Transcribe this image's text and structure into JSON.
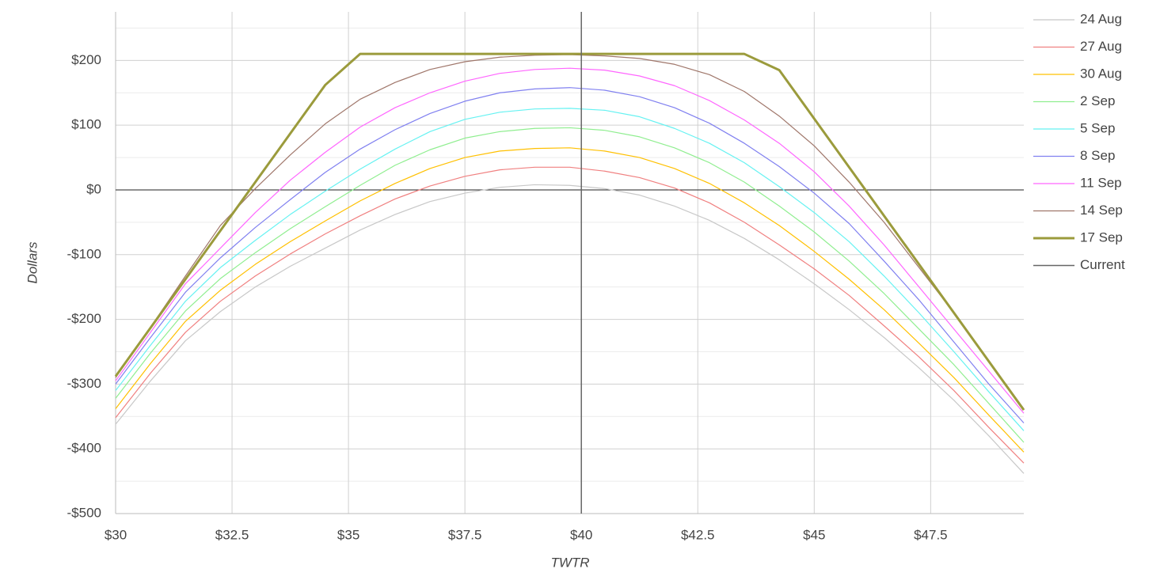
{
  "chart_data": {
    "type": "line",
    "x_label": "TWTR",
    "y_label": "Dollars",
    "x": [
      30,
      30.75,
      31.5,
      32.25,
      33,
      33.75,
      34.5,
      35.25,
      36,
      36.75,
      37.5,
      38.25,
      39,
      39.75,
      40.5,
      41.25,
      42,
      42.75,
      43.5,
      44.25,
      45,
      45.75,
      46.5,
      47.25,
      48,
      48.75,
      49.5
    ],
    "series": [
      {
        "name": "24 Aug",
        "color": "#c8c8c8",
        "width": 1.2,
        "values": [
          -362,
          -295,
          -233,
          -188,
          -150,
          -118,
          -90,
          -62,
          -38,
          -18,
          -5,
          4,
          8,
          7,
          2,
          -8,
          -25,
          -47,
          -75,
          -108,
          -145,
          -185,
          -228,
          -275,
          -325,
          -380,
          -438
        ]
      },
      {
        "name": "27 Aug",
        "color": "#f08080",
        "width": 1.2,
        "values": [
          -352,
          -283,
          -220,
          -172,
          -133,
          -99,
          -68,
          -40,
          -14,
          6,
          21,
          31,
          35,
          35,
          29,
          19,
          3,
          -20,
          -50,
          -85,
          -122,
          -163,
          -210,
          -258,
          -310,
          -367,
          -422
        ]
      },
      {
        "name": "30 Aug",
        "color": "#ffc000",
        "width": 1.2,
        "values": [
          -338,
          -268,
          -203,
          -155,
          -115,
          -80,
          -48,
          -17,
          10,
          33,
          50,
          60,
          64,
          65,
          60,
          50,
          33,
          10,
          -20,
          -55,
          -95,
          -138,
          -185,
          -237,
          -290,
          -348,
          -405
        ]
      },
      {
        "name": "2 Sep",
        "color": "#90ee90",
        "width": 1.2,
        "values": [
          -322,
          -252,
          -187,
          -137,
          -97,
          -60,
          -26,
          7,
          38,
          62,
          80,
          90,
          95,
          96,
          92,
          82,
          65,
          42,
          12,
          -25,
          -65,
          -110,
          -160,
          -215,
          -270,
          -330,
          -390
        ]
      },
      {
        "name": "5 Sep",
        "color": "#66f2f2",
        "width": 1.2,
        "values": [
          -310,
          -240,
          -172,
          -120,
          -78,
          -38,
          -2,
          32,
          63,
          90,
          109,
          120,
          125,
          126,
          123,
          113,
          95,
          72,
          42,
          5,
          -35,
          -80,
          -133,
          -190,
          -250,
          -312,
          -372
        ]
      },
      {
        "name": "8 Sep",
        "color": "#8080f0",
        "width": 1.2,
        "values": [
          -300,
          -228,
          -158,
          -105,
          -58,
          -15,
          27,
          63,
          93,
          118,
          137,
          150,
          156,
          158,
          154,
          144,
          127,
          103,
          72,
          36,
          -5,
          -52,
          -110,
          -170,
          -235,
          -300,
          -360
        ]
      },
      {
        "name": "11 Sep",
        "color": "#ff66ff",
        "width": 1.2,
        "values": [
          -295,
          -220,
          -145,
          -90,
          -35,
          15,
          58,
          97,
          127,
          150,
          168,
          180,
          186,
          188,
          185,
          176,
          161,
          138,
          108,
          72,
          28,
          -25,
          -85,
          -150,
          -215,
          -280,
          -345
        ]
      },
      {
        "name": "14 Sep",
        "color": "#a0776b",
        "width": 1.2,
        "values": [
          -290,
          -212,
          -133,
          -55,
          2,
          54,
          102,
          140,
          166,
          186,
          198,
          205,
          208,
          209,
          207,
          203,
          194,
          178,
          152,
          114,
          68,
          12,
          -50,
          -120,
          -190,
          -265,
          -338
        ]
      },
      {
        "name": "17 Sep",
        "color": "#9b9b3c",
        "width": 3,
        "values": [
          -288,
          -213,
          -138,
          -63,
          12,
          87,
          162,
          210,
          210,
          210,
          210,
          210,
          210,
          210,
          210,
          210,
          210,
          210,
          210,
          185,
          110,
          35,
          -40,
          -115,
          -190,
          -265,
          -340
        ]
      }
    ],
    "current": {
      "name": "Current",
      "color": "#666666",
      "x": 40
    },
    "xlim": [
      30,
      49.5
    ],
    "ylim": [
      -500,
      275
    ],
    "xticks": [
      {
        "value": 30,
        "label": "$30"
      },
      {
        "value": 32.5,
        "label": "$32.5"
      },
      {
        "value": 35,
        "label": "$35"
      },
      {
        "value": 37.5,
        "label": "$37.5"
      },
      {
        "value": 40,
        "label": "$40"
      },
      {
        "value": 42.5,
        "label": "$42.5"
      },
      {
        "value": 45,
        "label": "$45"
      },
      {
        "value": 47.5,
        "label": "$47.5"
      }
    ],
    "yticks": [
      {
        "value": -500,
        "label": "-$500"
      },
      {
        "value": -400,
        "label": "-$400"
      },
      {
        "value": -300,
        "label": "-$300"
      },
      {
        "value": -200,
        "label": "-$200"
      },
      {
        "value": -100,
        "label": "-$100"
      },
      {
        "value": 0,
        "label": "$0"
      },
      {
        "value": 100,
        "label": "$100"
      },
      {
        "value": 200,
        "label": "$200"
      }
    ],
    "y_minor_gridlines": [
      -450,
      -350,
      -250,
      -150,
      -50,
      50,
      150,
      250
    ],
    "grid": true,
    "legend": "right"
  }
}
